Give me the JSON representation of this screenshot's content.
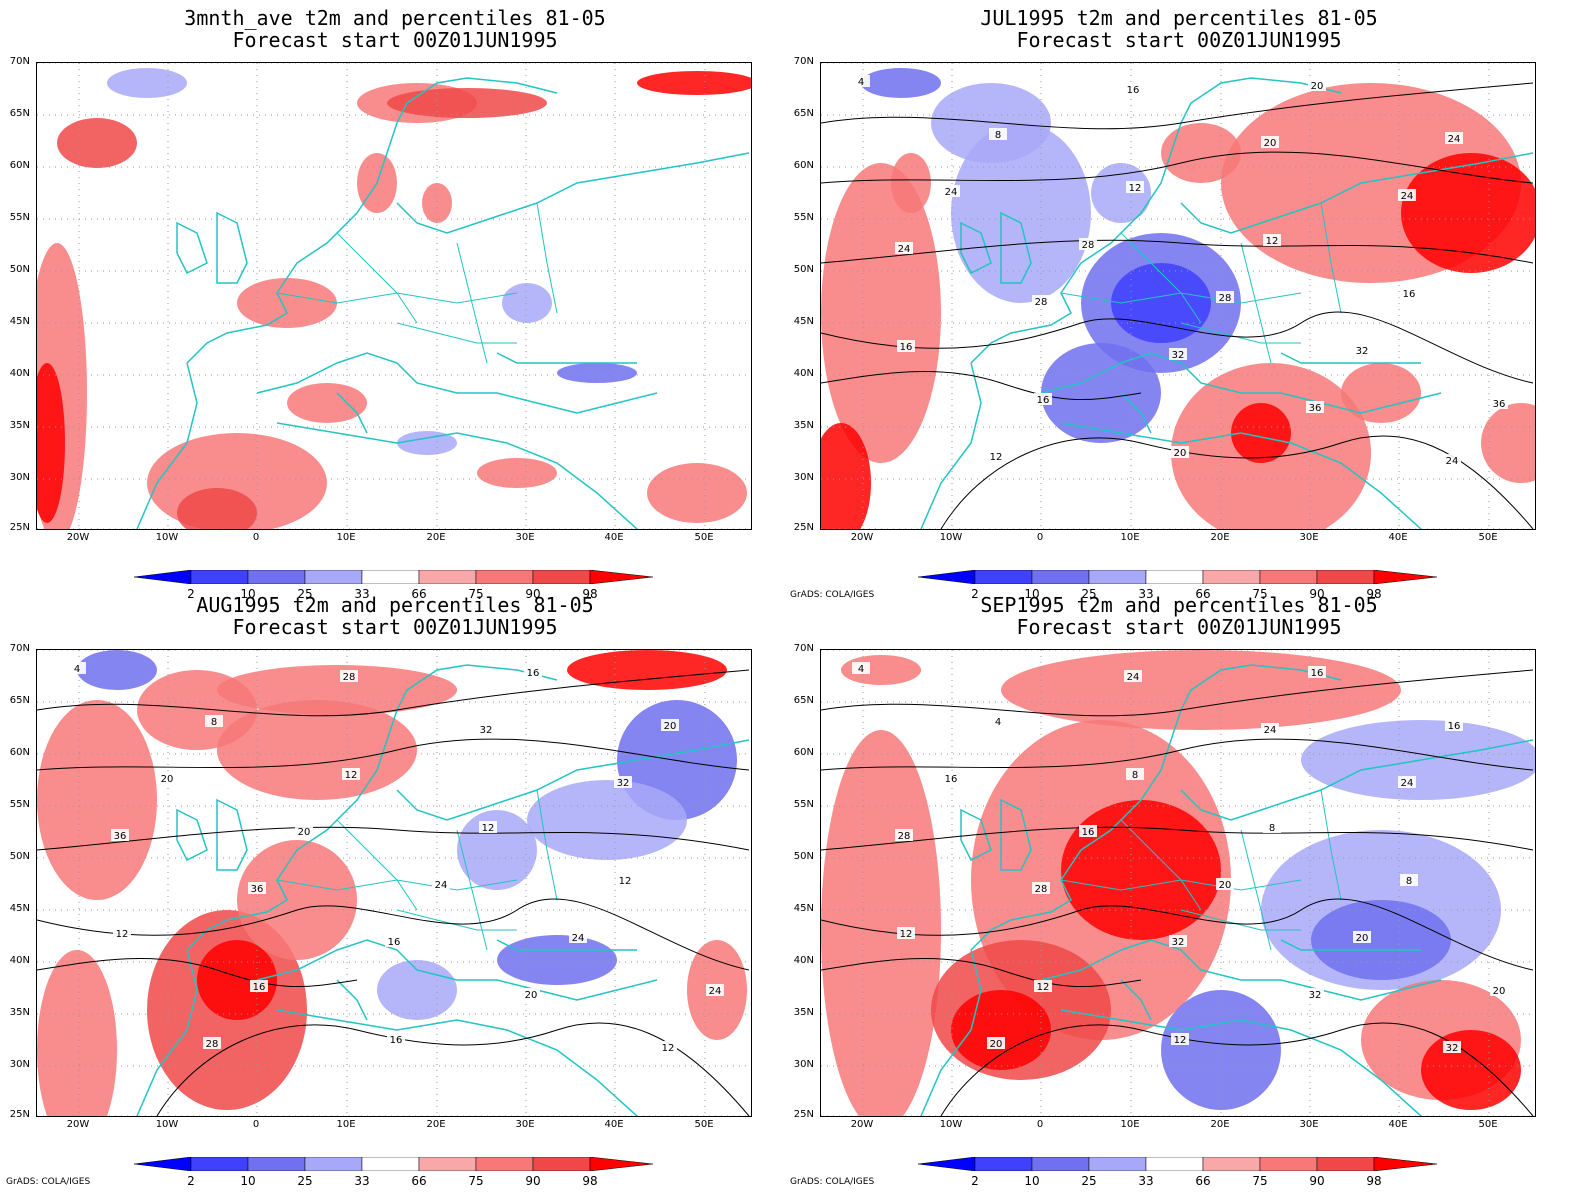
{
  "panels": [
    {
      "title_line1": "3mnth_ave t2m and percentiles 81-05",
      "title_line2": "Forecast start 00Z01JUN1995",
      "credit": "",
      "contour_labels": []
    },
    {
      "title_line1": "JUL1995 t2m and percentiles 81-05",
      "title_line2": "Forecast start 00Z01JUN1995",
      "credit": "GrADS: COLA/IGES",
      "contour_labels": [
        "4",
        "8",
        "12",
        "12",
        "16",
        "16",
        "16",
        "20",
        "20",
        "24",
        "24",
        "28",
        "28",
        "32",
        "36",
        "12",
        "16",
        "20",
        "24",
        "24",
        "28",
        "32",
        "36",
        "24"
      ]
    },
    {
      "title_line1": "AUG1995 t2m and percentiles 81-05",
      "title_line2": "Forecast start 00Z01JUN1995",
      "credit": "GrADS: COLA/IGES",
      "contour_labels": [
        "4",
        "8",
        "12",
        "12",
        "12",
        "12",
        "16",
        "16",
        "16",
        "20",
        "20",
        "20",
        "24",
        "24",
        "24",
        "28",
        "28",
        "32",
        "32",
        "36",
        "36",
        "16",
        "20",
        "12"
      ]
    },
    {
      "title_line1": "SEP1995 t2m and percentiles 81-05",
      "title_line2": "Forecast start 00Z01JUN1995",
      "credit": "GrADS: COLA/IGES",
      "contour_labels": [
        "4",
        "4",
        "8",
        "8",
        "8",
        "12",
        "12",
        "12",
        "16",
        "16",
        "16",
        "16",
        "20",
        "20",
        "20",
        "20",
        "24",
        "24",
        "24",
        "28",
        "28",
        "32",
        "32",
        "32"
      ]
    }
  ],
  "axes": {
    "lat_labels": [
      "70N",
      "65N",
      "60N",
      "55N",
      "50N",
      "45N",
      "40N",
      "35N",
      "30N",
      "25N"
    ],
    "lon_labels": [
      "20W",
      "10W",
      "0",
      "10E",
      "20E",
      "30E",
      "40E",
      "50E"
    ]
  },
  "colorbar": {
    "labels": [
      "2",
      "10",
      "25",
      "33",
      "66",
      "75",
      "90",
      "98"
    ],
    "colors": [
      "#0000ff",
      "#4040ff",
      "#7070f0",
      "#a8a8f8",
      "#ffffff",
      "#f8a8a8",
      "#f87878",
      "#f04848",
      "#ff0000"
    ]
  },
  "colors": {
    "coastline": "#22c4c4",
    "contour": "#000000",
    "grid": "#999999"
  }
}
